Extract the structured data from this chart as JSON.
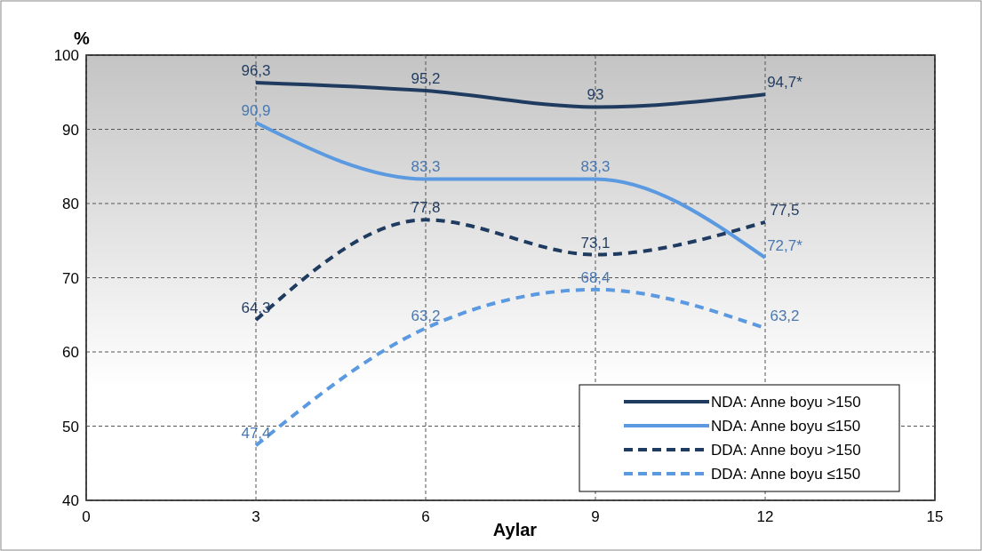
{
  "chart_data": {
    "type": "line",
    "xlabel": "Aylar",
    "ylabel": "%",
    "x": [
      3,
      6,
      9,
      12
    ],
    "xlim": [
      0,
      15
    ],
    "xticks": [
      0,
      3,
      6,
      9,
      12,
      15
    ],
    "ylim": [
      40,
      100
    ],
    "yticks": [
      40,
      50,
      60,
      70,
      80,
      90,
      100
    ],
    "grid": true,
    "legend": "bottom right",
    "marker": "none",
    "series": [
      {
        "name": "NDA: Anne boyu >150",
        "color": "#1f3b5f",
        "line_style": "solid",
        "values": [
          96.3,
          95.2,
          93,
          94.7
        ],
        "value_labels": [
          "96,3",
          "95,2",
          "93",
          "94,7*"
        ]
      },
      {
        "name": "NDA: Anne boyu ≤150",
        "color": "#5b9ae0",
        "line_style": "solid",
        "values": [
          90.9,
          83.3,
          83.3,
          72.7
        ],
        "value_labels": [
          "90,9",
          "83,3",
          "83,3",
          "72,7*"
        ]
      },
      {
        "name": "DDA: Anne boyu >150",
        "color": "#1f3b5f",
        "line_style": "dashed",
        "values": [
          64.3,
          77.8,
          73.1,
          77.5
        ],
        "value_labels": [
          "64,3",
          "77,8",
          "73,1",
          "77,5"
        ]
      },
      {
        "name": "DDA: Anne boyu ≤150",
        "color": "#5b9ae0",
        "line_style": "dashed",
        "values": [
          47.4,
          63.2,
          68.4,
          63.2
        ],
        "value_labels": [
          "47,4",
          "63,2",
          "68,4",
          "63,2"
        ]
      }
    ]
  }
}
